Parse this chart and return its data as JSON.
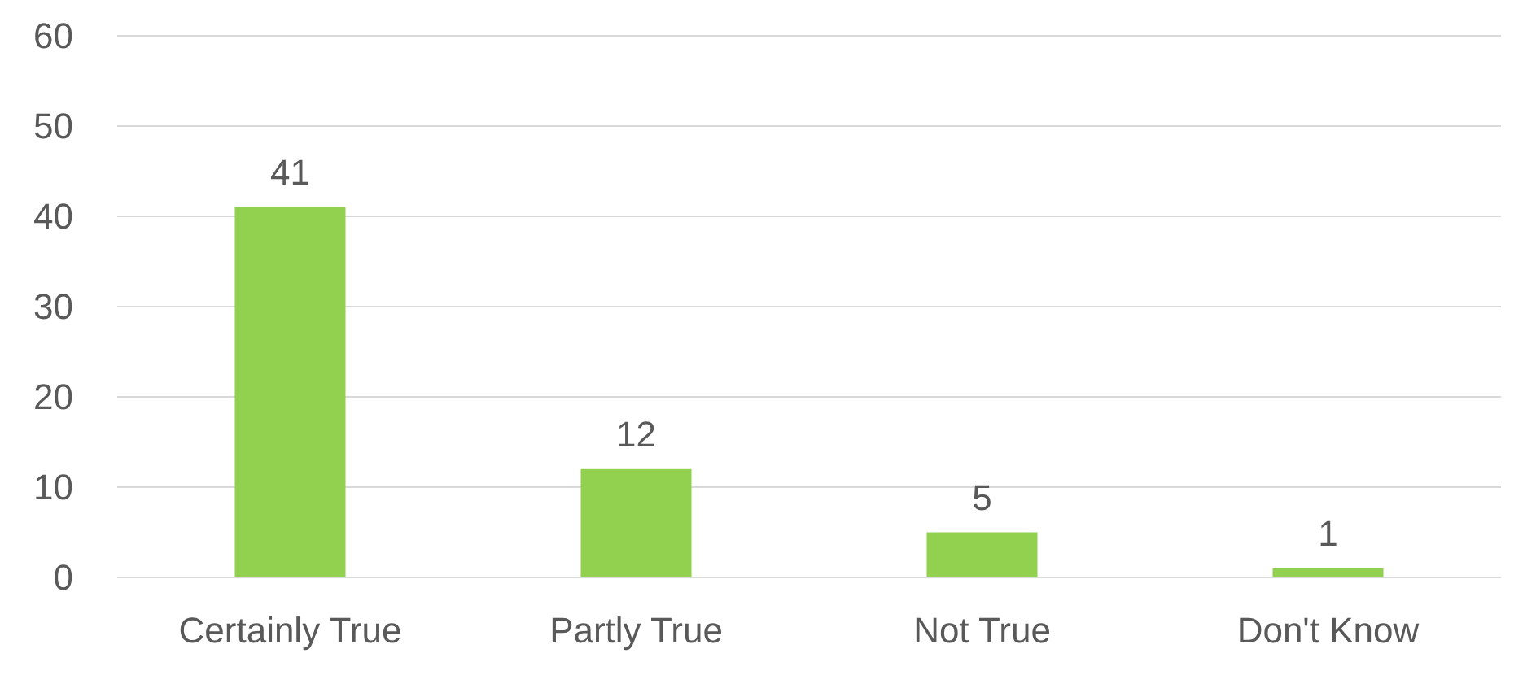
{
  "chart_data": {
    "type": "bar",
    "categories": [
      "Certainly True",
      "Partly True",
      "Not True",
      "Don't Know"
    ],
    "values": [
      41,
      12,
      5,
      1
    ],
    "color": "#92d050",
    "ylim": [
      0,
      60
    ],
    "yticks": [
      0,
      10,
      20,
      30,
      40,
      50,
      60
    ],
    "grid": "y",
    "data_labels": true
  }
}
